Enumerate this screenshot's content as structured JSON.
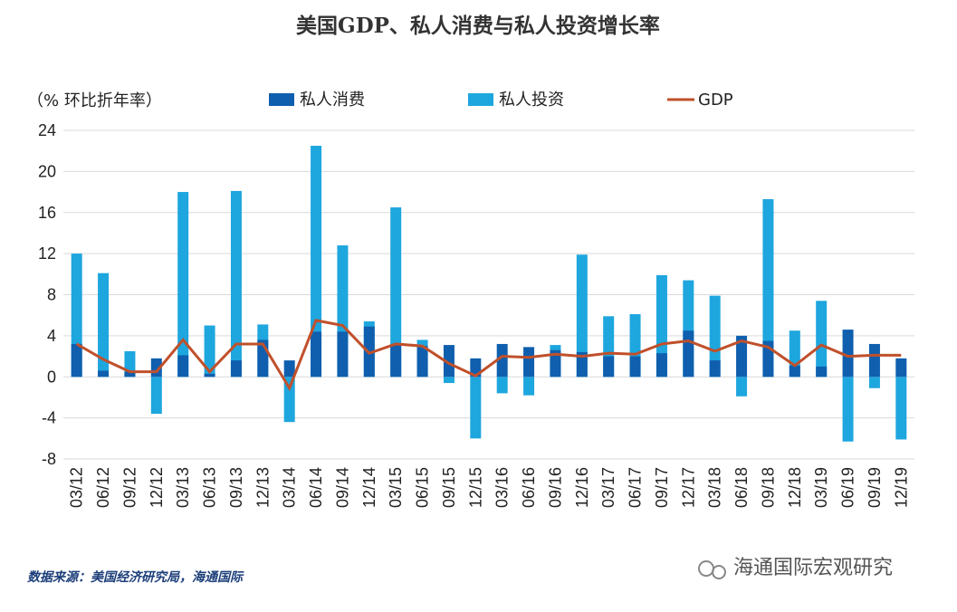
{
  "chart_data": {
    "type": "bar_line",
    "title": "美国GDP、私人消费与私人投资增长率",
    "y_label": "（% 环比折年率）",
    "source": "数据来源：美国经济研究局，海通国际",
    "watermark": "海通国际宏观研究",
    "categories": [
      "03/12",
      "06/12",
      "09/12",
      "12/12",
      "03/13",
      "06/13",
      "09/13",
      "12/13",
      "03/14",
      "06/14",
      "09/14",
      "12/14",
      "03/15",
      "06/15",
      "09/15",
      "12/15",
      "03/16",
      "06/16",
      "09/16",
      "12/16",
      "03/17",
      "06/17",
      "09/17",
      "12/17",
      "03/18",
      "06/18",
      "09/18",
      "12/18",
      "03/19",
      "06/19",
      "09/19",
      "12/19"
    ],
    "series": [
      {
        "name": "私人消费",
        "kind": "bar",
        "color": "#0f5fae",
        "values": [
          3.2,
          0.6,
          0.5,
          1.8,
          2.1,
          0.3,
          1.6,
          3.6,
          1.6,
          4.4,
          4.4,
          4.9,
          3.2,
          3.0,
          3.1,
          1.8,
          3.2,
          2.9,
          2.6,
          2.4,
          2.0,
          2.0,
          2.3,
          4.5,
          1.6,
          4.0,
          3.5,
          1.1,
          1.0,
          4.6,
          3.2,
          1.8
        ]
      },
      {
        "name": "私人投资",
        "kind": "bar",
        "color": "#1ea6de",
        "values": [
          12.0,
          10.1,
          2.5,
          -3.6,
          18.0,
          5.0,
          18.1,
          5.1,
          -4.4,
          22.5,
          12.8,
          5.4,
          16.5,
          3.6,
          -0.6,
          -6.0,
          -1.6,
          -1.8,
          3.1,
          11.9,
          5.9,
          6.1,
          9.9,
          9.4,
          7.9,
          -1.9,
          17.3,
          4.5,
          7.4,
          -6.3,
          -1.1,
          -6.1
        ]
      },
      {
        "name": "GDP",
        "kind": "line",
        "color": "#c0502b",
        "values": [
          3.2,
          1.7,
          0.5,
          0.5,
          3.6,
          0.5,
          3.2,
          3.2,
          -1.1,
          5.5,
          5.0,
          2.3,
          3.2,
          3.0,
          1.3,
          0.1,
          2.0,
          1.9,
          2.2,
          2.0,
          2.3,
          2.2,
          3.2,
          3.5,
          2.5,
          3.5,
          2.9,
          1.1,
          3.1,
          2.0,
          2.1,
          2.1
        ]
      }
    ],
    "ylim": [
      -8,
      24
    ],
    "yticks": [
      -8,
      -4,
      0,
      4,
      8,
      12,
      16,
      20,
      24
    ],
    "grid": true
  }
}
